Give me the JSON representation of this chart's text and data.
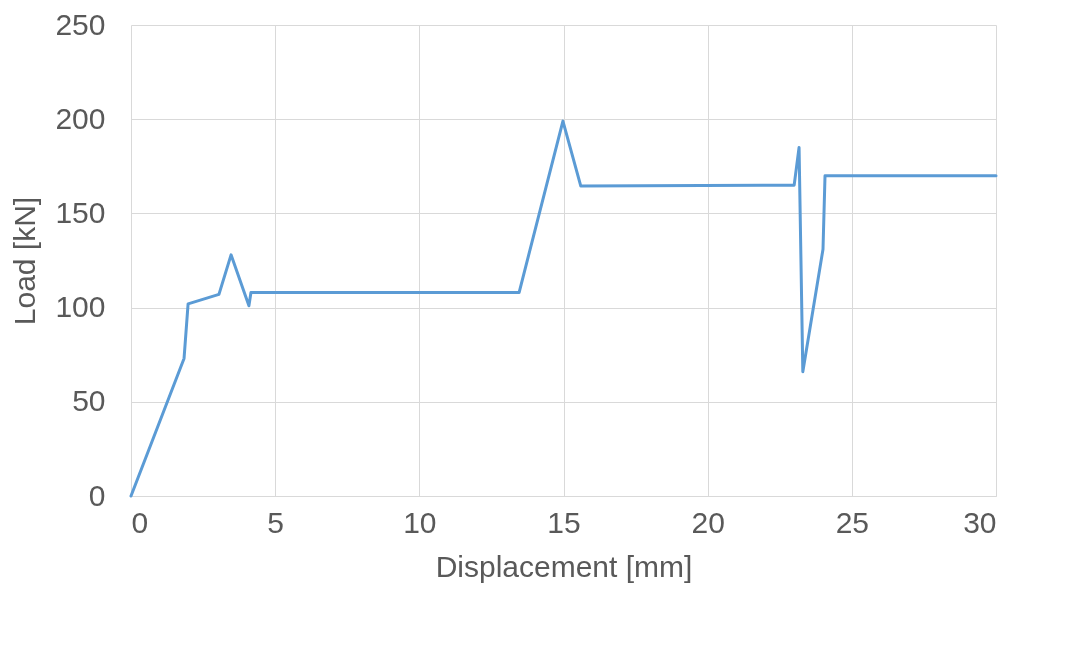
{
  "chart_data": {
    "type": "line",
    "xlabel": "Displacement  [mm]",
    "ylabel": "Load [kN]",
    "x": [
      0,
      1.84,
      1.98,
      3.05,
      3.47,
      4.09,
      4.16,
      13.46,
      14.98,
      15.6,
      23.0,
      23.17,
      23.3,
      24.0,
      24.07,
      30
    ],
    "series": [
      {
        "color": "#5b9bd5",
        "values": [
          0,
          73,
          102,
          107,
          128,
          101,
          108,
          108,
          199,
          164.5,
          165,
          185,
          66,
          131,
          170,
          170
        ]
      }
    ],
    "xlim": [
      0,
      30
    ],
    "xticks": [
      0,
      5,
      10,
      15,
      20,
      25,
      30
    ],
    "ylim": [
      0,
      250
    ],
    "yticks": [
      0,
      50,
      100,
      150,
      200,
      250
    ],
    "grid": true,
    "legend": false,
    "marker": "none",
    "line_style": "solid"
  }
}
